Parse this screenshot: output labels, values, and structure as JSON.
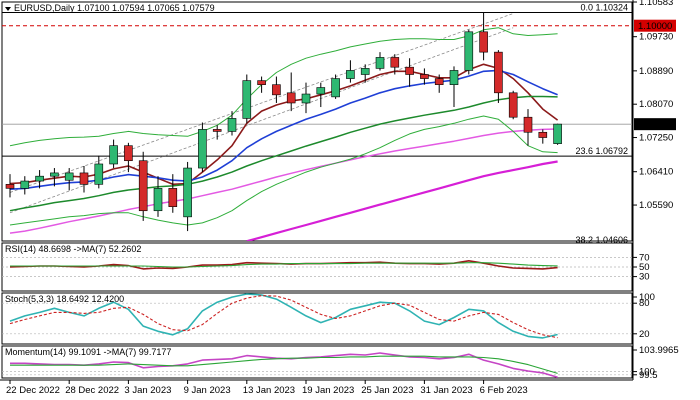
{
  "colors": {
    "up": "#2eb872",
    "down": "#d42a2a",
    "wick": "#000000",
    "ma_short": "#8b1a1a",
    "ma_mid": "#1f3fd6",
    "ma_long": "#1d8a2c",
    "ma_200": "#e35ae3",
    "ma_200_bold": "#d61fd6",
    "bollinger": "#2fae3a",
    "trend_channel": "#8a8a8a",
    "highlight_red": "#d40000",
    "rsi_line": "#9b1b1b",
    "rsi_signal": "#2aa536",
    "stoch_k": "#2fb3b3",
    "stoch_d": "#cc2222",
    "mom_line": "#c545c5",
    "mom_signal": "#2aa536"
  },
  "chart_data": [
    {
      "type": "candlestick",
      "title": "EURUSD,Daily  1.07100 1.07594 1.07065 1.07579",
      "ylim": [
        1.04706,
        1.10583
      ],
      "yticks": [
        1.0559,
        1.0641,
        1.0725,
        1.0807,
        1.0889,
        1.0973,
        1.10583
      ],
      "ytick_labels": [
        "1.05590",
        "1.06410",
        "1.07250",
        "1.08070",
        "1.08890",
        "1.09730",
        "1.10583"
      ],
      "price_labels": [
        {
          "text": "1.10000",
          "value": 1.1,
          "color": "#d40000"
        },
        {
          "text": "1.07579",
          "value": 1.07579,
          "color": "#000000"
        }
      ],
      "levels": [
        {
          "label": "0.0 1.10324",
          "value": 1.10324
        },
        {
          "label": "23.6 1.06792",
          "value": 1.06792
        },
        {
          "label": "38.2 1.04606",
          "value": 1.04606
        }
      ],
      "x_labels": [
        "22 Dec 2022",
        "28 Dec 2022",
        "3 Jan 2023",
        "9 Jan 2023",
        "13 Jan 2023",
        "19 Jan 2023",
        "25 Jan 2023",
        "31 Jan 2023",
        "6 Feb 2023"
      ],
      "ohlc": [
        [
          1.061,
          1.0635,
          1.0578,
          1.06
        ],
        [
          1.06,
          1.063,
          1.0585,
          1.0618
        ],
        [
          1.0618,
          1.0645,
          1.06,
          1.063
        ],
        [
          1.063,
          1.065,
          1.0605,
          1.0638
        ],
        [
          1.062,
          1.065,
          1.0595,
          1.0638
        ],
        [
          1.0638,
          1.0655,
          1.059,
          1.061
        ],
        [
          1.061,
          1.068,
          1.06,
          1.066
        ],
        [
          1.066,
          1.072,
          1.065,
          1.0705
        ],
        [
          1.0705,
          1.0712,
          1.064,
          1.0668
        ],
        [
          1.0668,
          1.069,
          1.052,
          1.0545
        ],
        [
          1.0545,
          1.063,
          1.053,
          1.06
        ],
        [
          1.06,
          1.0635,
          1.054,
          1.0555
        ],
        [
          1.053,
          1.0665,
          1.0495,
          1.065
        ],
        [
          1.065,
          1.0762,
          1.064,
          1.0745
        ],
        [
          1.0745,
          1.0755,
          1.072,
          1.074
        ],
        [
          1.074,
          1.079,
          1.073,
          1.0772
        ],
        [
          1.0772,
          1.088,
          1.076,
          1.0865
        ],
        [
          1.0865,
          1.0875,
          1.0835,
          1.0855
        ],
        [
          1.0855,
          1.0875,
          1.081,
          1.083
        ],
        [
          1.0835,
          1.0885,
          1.079,
          1.081
        ],
        [
          1.081,
          1.086,
          1.0785,
          1.0832
        ],
        [
          1.0832,
          1.086,
          1.08,
          1.0848
        ],
        [
          1.0825,
          1.088,
          1.082,
          1.087
        ],
        [
          1.087,
          1.0915,
          1.086,
          1.089
        ],
        [
          1.088,
          1.0905,
          1.086,
          1.0895
        ],
        [
          1.0895,
          1.0935,
          1.089,
          1.0922
        ],
        [
          1.0922,
          1.093,
          1.088,
          1.0898
        ],
        [
          1.0898,
          1.092,
          1.085,
          1.088
        ],
        [
          1.088,
          1.0895,
          1.0855,
          1.087
        ],
        [
          1.087,
          1.088,
          1.0835,
          1.0855
        ],
        [
          1.0855,
          1.09,
          1.08,
          1.089
        ],
        [
          1.089,
          1.099,
          1.088,
          1.0985
        ],
        [
          1.0985,
          1.1032,
          1.0915,
          1.0935
        ],
        [
          1.0935,
          1.094,
          1.081,
          1.0835
        ],
        [
          1.0835,
          1.084,
          1.077,
          1.0775
        ],
        [
          1.0775,
          1.0795,
          1.0705,
          1.0738
        ],
        [
          1.0738,
          1.0745,
          1.071,
          1.0725
        ],
        [
          1.071,
          1.0759,
          1.0707,
          1.0758
        ]
      ],
      "overlays": [
        {
          "color_key": "ma_short",
          "width": 1.6,
          "values": [
            1.0612,
            1.0614,
            1.062,
            1.0625,
            1.063,
            1.0628,
            1.0635,
            1.0648,
            1.0655,
            1.064,
            1.0625,
            1.061,
            1.0612,
            1.064,
            1.067,
            1.0705,
            1.076,
            1.079,
            1.0805,
            1.0815,
            1.082,
            1.083,
            1.084,
            1.0852,
            1.0866,
            1.088,
            1.0888,
            1.0888,
            1.088,
            1.0872,
            1.0872,
            1.0892,
            1.0905,
            1.0895,
            1.087,
            1.0835,
            1.0795,
            1.0768
          ]
        },
        {
          "color_key": "ma_mid",
          "width": 1.6,
          "values": [
            1.0598,
            1.06,
            1.0605,
            1.061,
            1.0614,
            1.0616,
            1.062,
            1.0628,
            1.0634,
            1.063,
            1.0626,
            1.062,
            1.0618,
            1.0628,
            1.0645,
            1.0668,
            1.07,
            1.0722,
            1.074,
            1.0755,
            1.077,
            1.0782,
            1.0795,
            1.081,
            1.0822,
            1.0835,
            1.0845,
            1.0852,
            1.0858,
            1.0862,
            1.0866,
            1.0876,
            1.0888,
            1.089,
            1.088,
            1.0862,
            1.0845,
            1.083
          ]
        },
        {
          "color_key": "ma_long",
          "width": 1.5,
          "values": [
            1.0545,
            1.0552,
            1.0558,
            1.0565,
            1.057,
            1.0575,
            1.0582,
            1.059,
            1.0596,
            1.06,
            1.0604,
            1.0606,
            1.061,
            1.0618,
            1.0628,
            1.064,
            1.0655,
            1.0668,
            1.068,
            1.0692,
            1.0704,
            1.0715,
            1.0726,
            1.0738,
            1.0748,
            1.0758,
            1.0766,
            1.0773,
            1.078,
            1.0786,
            1.0792,
            1.08,
            1.081,
            1.0818,
            1.0823,
            1.0826,
            1.0826,
            1.0825
          ]
        },
        {
          "color_key": "ma_200",
          "width": 1.5,
          "values": [
            1.049,
            1.0495,
            1.0502,
            1.051,
            1.0518,
            1.0525,
            1.0532,
            1.054,
            1.0548,
            1.0555,
            1.0562,
            1.0568,
            1.0574,
            1.0582,
            1.059,
            1.0598,
            1.0608,
            1.0618,
            1.0628,
            1.0637,
            1.0646,
            1.0654,
            1.0662,
            1.067,
            1.0678,
            1.0685,
            1.0692,
            1.0698,
            1.0704,
            1.071,
            1.0716,
            1.0723,
            1.073,
            1.0736,
            1.074,
            1.0743,
            1.0745,
            1.0746
          ]
        },
        {
          "color_key": "ma_200_bold",
          "width": 2.2,
          "start": 16,
          "values": [
            1.047,
            1.048,
            1.049,
            1.05,
            1.051,
            1.052,
            1.053,
            1.054,
            1.055,
            1.056,
            1.057,
            1.058,
            1.059,
            1.06,
            1.061,
            1.062,
            1.063,
            1.0638,
            1.0645,
            1.0652,
            1.066,
            1.0666
          ]
        },
        {
          "color_key": "bollinger",
          "width": 1,
          "values": [
            1.0705,
            1.0712,
            1.0718,
            1.0722,
            1.0725,
            1.0726,
            1.0728,
            1.0735,
            1.074,
            1.0735,
            1.0732,
            1.073,
            1.0728,
            1.074,
            1.0755,
            1.078,
            1.082,
            1.0855,
            1.0885,
            1.0905,
            1.092,
            1.093,
            1.0938,
            1.0948,
            1.0955,
            1.0962,
            1.0966,
            1.0968,
            1.0968,
            1.0966,
            1.0966,
            1.0975,
            1.099,
            1.0995,
            1.098,
            1.0976,
            1.0978,
            1.098
          ]
        },
        {
          "color_key": "bollinger",
          "width": 1,
          "values": [
            1.051,
            1.0515,
            1.052,
            1.0525,
            1.053,
            1.0533,
            1.0538,
            1.054,
            1.054,
            1.053,
            1.0522,
            1.0515,
            1.051,
            1.0515,
            1.0528,
            1.0545,
            1.057,
            1.0592,
            1.061,
            1.0625,
            1.064,
            1.0652,
            1.0662,
            1.0672,
            1.0685,
            1.07,
            1.0718,
            1.0734,
            1.0745,
            1.0752,
            1.076,
            1.077,
            1.0778,
            1.077,
            1.074,
            1.0705,
            1.069,
            1.0688
          ]
        }
      ],
      "trend_channel": [
        {
          "from": [
            0,
            1.059
          ],
          "to": [
            34,
            1.103
          ]
        },
        {
          "from": [
            0,
            1.054
          ],
          "to": [
            34,
            1.0995
          ]
        }
      ]
    },
    {
      "type": "line",
      "title": "RSI(14) 48.6698 ->MA(7) 52.2602",
      "ylim": [
        0,
        100
      ],
      "yticks": [
        30,
        50,
        70
      ],
      "ytick_labels": [
        "30",
        "50",
        "70"
      ],
      "series": [
        {
          "color_key": "rsi_line",
          "values": [
            50,
            51,
            52,
            52,
            51,
            50,
            52,
            55,
            53,
            46,
            48,
            47,
            50,
            54,
            54,
            55,
            59,
            58,
            57,
            56,
            57,
            57,
            58,
            59,
            59,
            60,
            58,
            57,
            57,
            56,
            58,
            63,
            58,
            52,
            48,
            47,
            46,
            48.67
          ]
        },
        {
          "color_key": "rsi_signal",
          "values": [
            52,
            52,
            52,
            52,
            52,
            52,
            52,
            52,
            52,
            52,
            51,
            50,
            50,
            51,
            52,
            53,
            55,
            56,
            56,
            57,
            57,
            57,
            57,
            57,
            58,
            58,
            58,
            58,
            58,
            58,
            58,
            59,
            59,
            58,
            56,
            54,
            53,
            52.26
          ]
        }
      ]
    },
    {
      "type": "line",
      "title": "Stoch(5,3,3) 18.6492 12.4200",
      "ylim": [
        0,
        100
      ],
      "yticks": [
        20,
        80,
        100
      ],
      "ytick_labels": [
        "20",
        "80",
        "100"
      ],
      "series": [
        {
          "color_key": "stoch_k",
          "values": [
            45,
            55,
            62,
            70,
            62,
            55,
            70,
            82,
            68,
            35,
            25,
            18,
            30,
            65,
            82,
            92,
            98,
            96,
            88,
            72,
            55,
            42,
            52,
            68,
            75,
            82,
            80,
            65,
            45,
            38,
            52,
            68,
            65,
            42,
            25,
            15,
            12,
            18.65
          ]
        },
        {
          "color_key": "stoch_d",
          "values": [
            40,
            48,
            55,
            62,
            62,
            60,
            62,
            70,
            72,
            58,
            40,
            28,
            26,
            38,
            60,
            80,
            90,
            95,
            94,
            86,
            72,
            58,
            50,
            55,
            65,
            75,
            80,
            76,
            62,
            48,
            45,
            55,
            62,
            58,
            42,
            28,
            18,
            12.42
          ]
        }
      ]
    },
    {
      "type": "line",
      "title": "Momentum(14) 99.1091 ->MA(7) 99.7177",
      "ylim": [
        99.0,
        104.0
      ],
      "yticks": [
        99.5,
        100,
        103.9965
      ],
      "ytick_labels": [
        "99.5",
        "100",
        "103.9965"
      ],
      "series": [
        {
          "color_key": "mom_line",
          "values": [
            101.3,
            101.3,
            101.2,
            101.1,
            101.1,
            101.0,
            101.2,
            101.5,
            101.4,
            100.6,
            100.8,
            100.9,
            101.2,
            101.8,
            101.9,
            102.0,
            102.5,
            102.3,
            102.1,
            102.0,
            102.2,
            102.3,
            102.5,
            102.7,
            102.6,
            102.9,
            102.6,
            102.3,
            102.2,
            102.0,
            102.2,
            102.7,
            101.8,
            101.2,
            100.5,
            100.1,
            99.8,
            99.11
          ]
        },
        {
          "color_key": "mom_signal",
          "values": [
            101.0,
            101.0,
            101.0,
            101.0,
            101.0,
            101.0,
            101.0,
            101.1,
            101.2,
            101.1,
            101.0,
            100.9,
            100.9,
            101.1,
            101.3,
            101.5,
            101.7,
            101.9,
            102.0,
            102.1,
            102.1,
            102.2,
            102.2,
            102.3,
            102.3,
            102.4,
            102.4,
            102.4,
            102.4,
            102.3,
            102.3,
            102.3,
            102.2,
            102.0,
            101.6,
            101.1,
            100.4,
            99.72
          ]
        }
      ]
    }
  ]
}
